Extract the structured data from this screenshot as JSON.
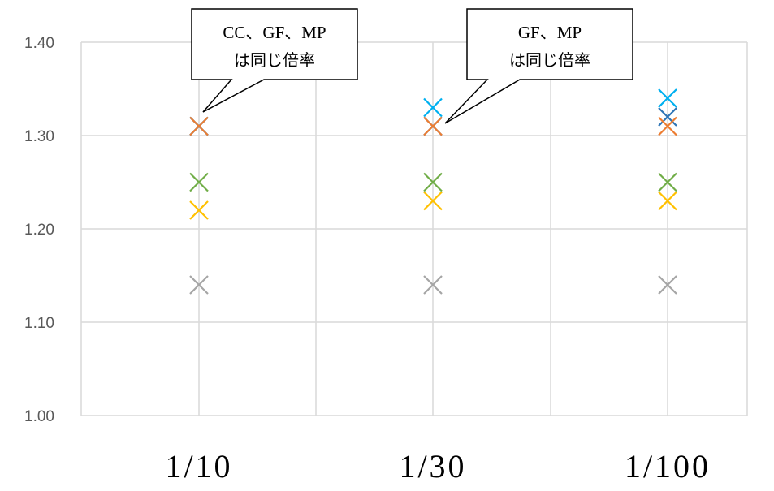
{
  "chart_data": {
    "type": "scatter",
    "title": "",
    "xlabel": "",
    "ylabel": "",
    "categories": [
      "1/10",
      "1/30",
      "1/100"
    ],
    "ylim": [
      1.0,
      1.4
    ],
    "yticks": [
      "1.00",
      "1.10",
      "1.20",
      "1.30",
      "1.40"
    ],
    "grid": true,
    "marker": "x",
    "series": [
      {
        "color": "#00b0f0",
        "values": [
          1.31,
          1.33,
          1.34
        ]
      },
      {
        "color": "#2e75b6",
        "values": [
          1.31,
          1.31,
          1.32
        ]
      },
      {
        "color": "#ed7d31",
        "values": [
          1.31,
          1.31,
          1.31
        ]
      },
      {
        "color": "#70ad47",
        "values": [
          1.25,
          1.25,
          1.25
        ]
      },
      {
        "color": "#ffc000",
        "values": [
          1.22,
          1.23,
          1.23
        ]
      },
      {
        "color": "#a5a5a5",
        "values": [
          1.14,
          1.14,
          1.14
        ]
      }
    ],
    "annotations": [
      {
        "line1": "CC、GF、MP",
        "line2": "は同じ倍率",
        "category_index": 0,
        "y": 1.31
      },
      {
        "line1": "GF、MP",
        "line2": "は同じ倍率",
        "category_index": 1,
        "y": 1.31
      }
    ]
  }
}
